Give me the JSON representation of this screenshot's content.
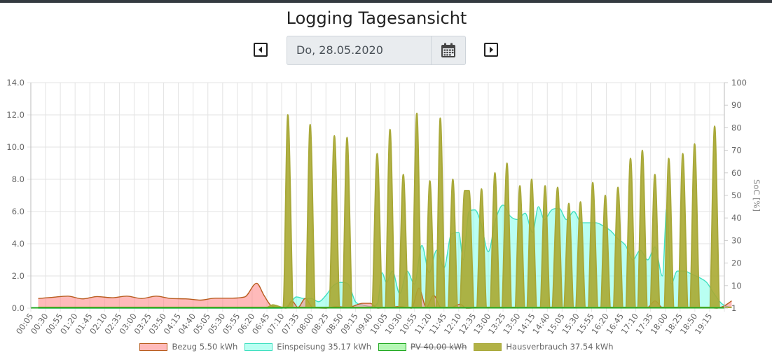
{
  "page": {
    "title": "Logging Tagesansicht"
  },
  "date_picker": {
    "value": "Do, 28.05.2020",
    "prev_icon": "caret-left-icon",
    "next_icon": "caret-right-icon",
    "calendar_icon": "calendar-icon"
  },
  "chart_data": {
    "type": "line",
    "x_tick_labels": [
      "00:05",
      "00:30",
      "00:55",
      "01:20",
      "01:45",
      "02:10",
      "02:35",
      "03:00",
      "03:25",
      "03:50",
      "04:15",
      "04:40",
      "05:05",
      "05:30",
      "05:55",
      "06:20",
      "06:45",
      "07:10",
      "07:35",
      "08:00",
      "08:25",
      "08:50",
      "09:15",
      "09:40",
      "10:05",
      "10:30",
      "10:55",
      "11:20",
      "11:45",
      "12:10",
      "12:35",
      "13:00",
      "13:25",
      "13:50",
      "14:15",
      "14:40",
      "15:05",
      "15:30",
      "15:55",
      "16:20",
      "16:45",
      "17:10",
      "17:35",
      "18:00",
      "18:25",
      "18:50",
      "19:15"
    ],
    "y_left": {
      "min": 0,
      "max": 14,
      "ticks": [
        "0.0",
        "2.0",
        "4.0",
        "6.0",
        "8.0",
        "10.0",
        "12.0",
        "14.0"
      ]
    },
    "y_right": {
      "label": "SoC [%]",
      "min": 0,
      "max": 100,
      "ticks": [
        "1",
        "10",
        "20",
        "30",
        "40",
        "50",
        "60",
        "70",
        "80",
        "90",
        "100"
      ]
    },
    "grid": true,
    "legend": {
      "position": "bottom"
    },
    "series": [
      {
        "name": "Bezug 5.50 kWh",
        "key": "bezug",
        "color": "#b85c1e",
        "fill": "rgba(255,130,130,0.55)",
        "hidden": false,
        "values": [
          [
            0,
            0.6
          ],
          [
            1,
            0.68
          ],
          [
            2,
            0.75
          ],
          [
            3,
            0.58
          ],
          [
            4,
            0.72
          ],
          [
            5,
            0.65
          ],
          [
            6,
            0.75
          ],
          [
            7,
            0.6
          ],
          [
            8,
            0.75
          ],
          [
            9,
            0.6
          ],
          [
            10,
            0.58
          ],
          [
            11,
            0.5
          ],
          [
            12,
            0.62
          ],
          [
            13,
            0.62
          ],
          [
            14,
            0.7
          ],
          [
            14.8,
            1.55
          ],
          [
            15.3,
            0.8
          ],
          [
            15.8,
            0.15
          ],
          [
            16.3,
            0.05
          ],
          [
            16.8,
            0.0
          ],
          [
            17.2,
            0.45
          ],
          [
            17.6,
            0.05
          ],
          [
            18.1,
            0.6
          ],
          [
            18.6,
            0.05
          ],
          [
            19.5,
            0.0
          ],
          [
            20.2,
            0.1
          ],
          [
            21,
            0.05
          ],
          [
            22,
            0.3
          ],
          [
            22.5,
            0.3
          ],
          [
            23,
            0.0
          ],
          [
            23.8,
            0.05
          ],
          [
            24.5,
            0.1
          ],
          [
            25.3,
            0.0
          ],
          [
            25.8,
            1.25
          ],
          [
            26.3,
            0.05
          ],
          [
            26.8,
            0.8
          ],
          [
            27.3,
            0.05
          ],
          [
            28,
            0.05
          ],
          [
            28.6,
            0.25
          ],
          [
            29,
            0.0
          ],
          [
            30,
            0.02
          ],
          [
            35,
            0.02
          ],
          [
            40,
            0.02
          ],
          [
            41.3,
            0.05
          ],
          [
            41.8,
            0.45
          ],
          [
            42.3,
            0.05
          ],
          [
            44,
            0.05
          ],
          [
            45,
            0.05
          ],
          [
            46,
            0.0
          ],
          [
            46.5,
            0.15
          ],
          [
            47,
            0.45
          ]
        ]
      },
      {
        "name": "Einspeisung 35.17 kWh",
        "key": "einspeisung",
        "color": "#40e0c0",
        "fill": "rgba(128,255,232,0.55)",
        "hidden": false,
        "values": [
          [
            0,
            0
          ],
          [
            16.5,
            0
          ],
          [
            17,
            0.2
          ],
          [
            17.5,
            0.7
          ],
          [
            18,
            0.6
          ],
          [
            18.5,
            0.6
          ],
          [
            19,
            0.4
          ],
          [
            19.5,
            0.8
          ],
          [
            20,
            1.4
          ],
          [
            20.5,
            1.6
          ],
          [
            21,
            1.5
          ],
          [
            21.5,
            0.4
          ],
          [
            22,
            0.2
          ],
          [
            22.5,
            0.1
          ],
          [
            23,
            0.3
          ],
          [
            23.3,
            2.2
          ],
          [
            23.6,
            1.6
          ],
          [
            24,
            2.3
          ],
          [
            24.5,
            0.9
          ],
          [
            25,
            2.3
          ],
          [
            25.5,
            1.5
          ],
          [
            26,
            3.9
          ],
          [
            26.5,
            2.2
          ],
          [
            27,
            3.6
          ],
          [
            27.5,
            2.5
          ],
          [
            28,
            4.6
          ],
          [
            28.5,
            4.7
          ],
          [
            28.8,
            3.0
          ],
          [
            29.2,
            6.0
          ],
          [
            29.6,
            6.1
          ],
          [
            30,
            5.3
          ],
          [
            30.5,
            3.5
          ],
          [
            31,
            5.5
          ],
          [
            31.5,
            6.4
          ],
          [
            32,
            5.7
          ],
          [
            32.5,
            5.5
          ],
          [
            33,
            5.9
          ],
          [
            33.5,
            4.7
          ],
          [
            33.9,
            6.3
          ],
          [
            34.3,
            5.5
          ],
          [
            34.8,
            6.1
          ],
          [
            35.3,
            6.2
          ],
          [
            35.8,
            5.5
          ],
          [
            36.3,
            6.0
          ],
          [
            36.8,
            5.3
          ],
          [
            37.3,
            5.3
          ],
          [
            37.8,
            5.3
          ],
          [
            38.3,
            5.1
          ],
          [
            38.8,
            4.8
          ],
          [
            39.3,
            4.3
          ],
          [
            39.8,
            3.9
          ],
          [
            40.3,
            3.0
          ],
          [
            40.8,
            3.6
          ],
          [
            41.3,
            3.0
          ],
          [
            41.8,
            3.8
          ],
          [
            42.3,
            2.0
          ],
          [
            42.6,
            6.2
          ],
          [
            42.9,
            1.5
          ],
          [
            43.3,
            2.3
          ],
          [
            43.8,
            2.3
          ],
          [
            44.3,
            2.1
          ],
          [
            44.8,
            1.9
          ],
          [
            45.3,
            1.6
          ],
          [
            45.8,
            0.9
          ],
          [
            46.3,
            0.3
          ],
          [
            46.7,
            0.1
          ],
          [
            47,
            0.05
          ]
        ]
      },
      {
        "name": "PV 40.00 kWh",
        "key": "pv",
        "color": "#22a822",
        "fill": "rgba(120,240,120,0.55)",
        "hidden": true,
        "values": []
      },
      {
        "name": "Hausverbrauch 37.54 kWh",
        "key": "hausverbrauch",
        "color": "#a8a838",
        "fill": "rgba(170,170,50,0.9)",
        "hidden": false,
        "values": [
          [
            0,
            0.05
          ],
          [
            15.5,
            0.05
          ],
          [
            15.9,
            0.2
          ],
          [
            16.6,
            0.05
          ],
          [
            16.92,
            12.0
          ],
          [
            17.3,
            0.05
          ],
          [
            18.1,
            0.05
          ],
          [
            18.43,
            11.4
          ],
          [
            18.8,
            0.05
          ],
          [
            19.7,
            0.05
          ],
          [
            20.07,
            10.7
          ],
          [
            20.45,
            0.05
          ],
          [
            20.6,
            0.05
          ],
          [
            20.93,
            10.6
          ],
          [
            21.3,
            0.05
          ],
          [
            22.6,
            0.05
          ],
          [
            22.97,
            9.6
          ],
          [
            23.35,
            0.05
          ],
          [
            23.5,
            0.05
          ],
          [
            23.84,
            11.1
          ],
          [
            24.2,
            0.05
          ],
          [
            24.4,
            0.05
          ],
          [
            24.74,
            8.3
          ],
          [
            25.1,
            0.05
          ],
          [
            25.3,
            0.05
          ],
          [
            25.66,
            12.1
          ],
          [
            26.0,
            0.05
          ],
          [
            26.2,
            0.05
          ],
          [
            26.54,
            7.9
          ],
          [
            26.9,
            0.05
          ],
          [
            26.95,
            0.05
          ],
          [
            27.25,
            11.8
          ],
          [
            27.6,
            0.05
          ],
          [
            27.75,
            0.05
          ],
          [
            28.1,
            8.0
          ],
          [
            28.45,
            0.05
          ],
          [
            28.55,
            0.05
          ],
          [
            28.9,
            7.3
          ],
          [
            29.2,
            7.3
          ],
          [
            29.55,
            0.05
          ],
          [
            29.7,
            0.05
          ],
          [
            30.04,
            7.4
          ],
          [
            30.4,
            0.05
          ],
          [
            30.6,
            0.05
          ],
          [
            30.95,
            8.4
          ],
          [
            31.3,
            0.05
          ],
          [
            31.4,
            0.05
          ],
          [
            31.77,
            9.0
          ],
          [
            32.1,
            0.05
          ],
          [
            32.3,
            0.05
          ],
          [
            32.64,
            7.6
          ],
          [
            33.0,
            0.05
          ],
          [
            33.1,
            0.05
          ],
          [
            33.44,
            8.0
          ],
          [
            33.8,
            0.05
          ],
          [
            34.0,
            0.05
          ],
          [
            34.35,
            7.6
          ],
          [
            34.7,
            0.05
          ],
          [
            34.8,
            0.05
          ],
          [
            35.2,
            7.5
          ],
          [
            35.55,
            0.05
          ],
          [
            35.6,
            0.05
          ],
          [
            35.96,
            6.5
          ],
          [
            36.3,
            0.05
          ],
          [
            36.4,
            0.05
          ],
          [
            36.75,
            6.6
          ],
          [
            37.1,
            0.05
          ],
          [
            37.25,
            0.05
          ],
          [
            37.58,
            7.8
          ],
          [
            37.95,
            0.05
          ],
          [
            38.1,
            0.05
          ],
          [
            38.43,
            7.0
          ],
          [
            38.8,
            0.05
          ],
          [
            38.95,
            0.05
          ],
          [
            39.29,
            7.5
          ],
          [
            39.65,
            0.05
          ],
          [
            39.8,
            0.05
          ],
          [
            40.14,
            9.3
          ],
          [
            40.5,
            0.05
          ],
          [
            40.6,
            0.05
          ],
          [
            40.94,
            9.8
          ],
          [
            41.3,
            0.05
          ],
          [
            41.45,
            0.05
          ],
          [
            41.79,
            8.3
          ],
          [
            42.15,
            0.05
          ],
          [
            42.4,
            0.05
          ],
          [
            42.73,
            9.3
          ],
          [
            43.1,
            0.05
          ],
          [
            43.35,
            0.05
          ],
          [
            43.68,
            9.6
          ],
          [
            44.05,
            0.05
          ],
          [
            44.15,
            0.05
          ],
          [
            44.48,
            10.2
          ],
          [
            44.85,
            0.05
          ],
          [
            45.5,
            0.05
          ],
          [
            45.84,
            11.3
          ],
          [
            46.2,
            0.05
          ],
          [
            47,
            0.05
          ]
        ]
      }
    ]
  }
}
